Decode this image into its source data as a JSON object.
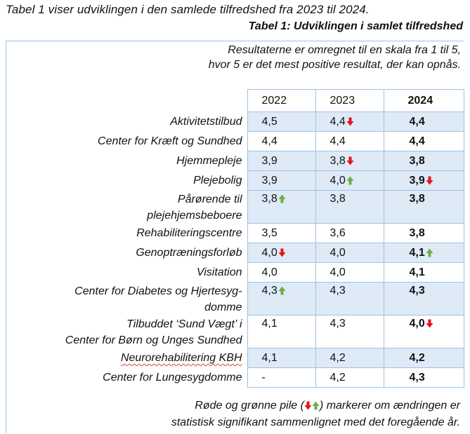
{
  "intro": "Tabel 1 viser udviklingen i den samlede tilfredshed fra 2023 til 2024.",
  "caption": "Tabel 1: Udviklingen i samlet tilfredshed",
  "note_top": {
    "line1": "Resultaterne er omregnet til en skala fra 1 til 5,",
    "line2": "hvor 5 er det mest positive resultat, der kan opnås."
  },
  "colors": {
    "down_arrow": "#e8121c",
    "up_arrow": "#70ad47",
    "shade": "#deeaf6",
    "border": "#9cc2e5"
  },
  "table": {
    "headers": [
      "2022",
      "2023",
      "2024"
    ],
    "rows": [
      {
        "label": "Aktivitetstilbud",
        "v2022": "4,5",
        "a2022": "",
        "v2023": "4,4",
        "a2023": "down",
        "v2024": "4,4",
        "a2024": ""
      },
      {
        "label": "Center for Kræft og Sundhed",
        "v2022": "4,4",
        "a2022": "",
        "v2023": "4,4",
        "a2023": "",
        "v2024": "4,4",
        "a2024": ""
      },
      {
        "label": "Hjemmepleje",
        "v2022": "3,9",
        "a2022": "",
        "v2023": "3,8",
        "a2023": "down",
        "v2024": "3,8",
        "a2024": ""
      },
      {
        "label": "Plejebolig",
        "v2022": "3,9",
        "a2022": "",
        "v2023": "4,0",
        "a2023": "up",
        "v2024": "3,9",
        "a2024": "down"
      },
      {
        "label_line1": "Pårørende til",
        "label_line2": "plejehjemsbeboere",
        "v2022": "3,8",
        "a2022": "up",
        "v2023": "3,8",
        "a2023": "",
        "v2024": "3,8",
        "a2024": ""
      },
      {
        "label": "Rehabiliteringscentre",
        "v2022": "3,5",
        "a2022": "",
        "v2023": "3,6",
        "a2023": "",
        "v2024": "3,8",
        "a2024": ""
      },
      {
        "label": "Genoptræningsforløb",
        "v2022": "4,0",
        "a2022": "down",
        "v2023": "4,0",
        "a2023": "",
        "v2024": "4,1",
        "a2024": "up"
      },
      {
        "label": "Visitation",
        "v2022": "4,0",
        "a2022": "",
        "v2023": "4,0",
        "a2023": "",
        "v2024": "4,1",
        "a2024": ""
      },
      {
        "label_line1": "Center for Diabetes og Hjertesyg-",
        "label_line2": "domme",
        "v2022": "4,3",
        "a2022": "up",
        "v2023": "4,3",
        "a2023": "",
        "v2024": "4,3",
        "a2024": ""
      },
      {
        "label_line1": "Tilbuddet ‘Sund Vægt’ i",
        "label_line2": "Center for Børn og Unges Sundhed",
        "v2022": "4,1",
        "a2022": "",
        "v2023": "4,3",
        "a2023": "",
        "v2024": "4,0",
        "a2024": "down"
      },
      {
        "label": "Neurorehabilitering KBH",
        "v2022": "4,1",
        "a2022": "",
        "v2023": "4,2",
        "a2023": "",
        "v2024": "4,2",
        "a2024": ""
      },
      {
        "label": "Center for Lungesygdomme",
        "v2022": "-",
        "a2022": "",
        "v2023": "4,2",
        "a2023": "",
        "v2024": "4,3",
        "a2024": ""
      }
    ]
  },
  "note_bottom": {
    "line1_before": "Røde og grønne pile (",
    "line1_after": ") markerer om ændringen er",
    "line2": "statistisk signifikant sammenlignet med det foregående år."
  }
}
